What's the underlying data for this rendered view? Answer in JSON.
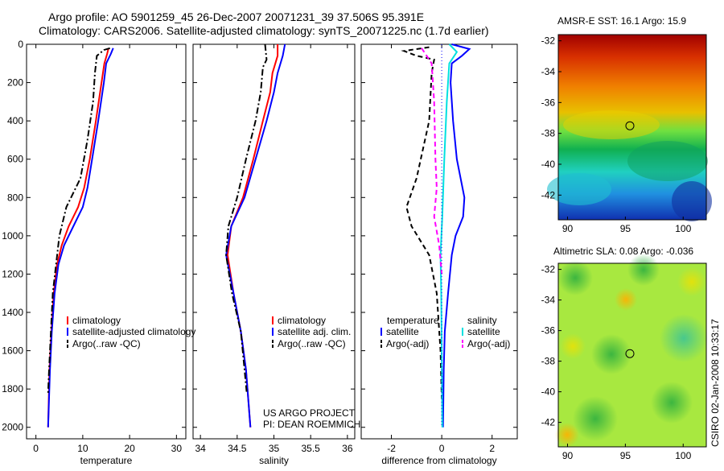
{
  "header": {
    "line1": "Argo profile: AO 5901259_45 26-Dec-2007 20071231_39 37.506S 95.391E",
    "line2": "Climatology: CARS2006. Satellite-adjusted climatology: synTS_20071225.nc (1.7d earlier)"
  },
  "stamp": "CSIRO 02-Jan-2008 10:33:17",
  "project": {
    "line1": "US ARGO PROJECT",
    "line2": "PI: DEAN ROEMMICH"
  },
  "colors": {
    "climatology": "#ff0000",
    "satellite": "#0000ff",
    "argo": "#000000",
    "sat_diff": "#00e0e0",
    "argo_sal_diff": "#ff00ff"
  },
  "chart_data": [
    {
      "type": "line",
      "xlabel": "temperature",
      "ylabel": "",
      "xlim": [
        -2,
        32
      ],
      "ylim": [
        2060,
        0
      ],
      "xticks": [
        0,
        10,
        20,
        30
      ],
      "yticks": [
        0,
        200,
        400,
        600,
        800,
        1000,
        1200,
        1400,
        1600,
        1800,
        2000
      ],
      "legend": [
        "climatology",
        "satellite-adjusted climatology",
        "Argo(..raw -QC)"
      ],
      "series": [
        {
          "name": "climatology",
          "style": "solid",
          "color": "#ff0000",
          "points": [
            [
              15.5,
              20
            ],
            [
              15.2,
              50
            ],
            [
              14.6,
              100
            ],
            [
              14.0,
              200
            ],
            [
              12.8,
              400
            ],
            [
              11.5,
              600
            ],
            [
              10.3,
              750
            ],
            [
              9.0,
              850
            ],
            [
              7.0,
              950
            ],
            [
              5.5,
              1050
            ],
            [
              4.5,
              1150
            ],
            [
              3.8,
              1300
            ],
            [
              3.3,
              1500
            ],
            [
              2.9,
              1700
            ],
            [
              2.6,
              2000
            ]
          ]
        },
        {
          "name": "satellite-adjusted climatology",
          "style": "solid",
          "color": "#0000ff",
          "points": [
            [
              16.5,
              20
            ],
            [
              16.0,
              50
            ],
            [
              15.0,
              100
            ],
            [
              14.5,
              200
            ],
            [
              13.3,
              400
            ],
            [
              12.0,
              600
            ],
            [
              11.0,
              750
            ],
            [
              10.0,
              850
            ],
            [
              8.0,
              950
            ],
            [
              6.0,
              1050
            ],
            [
              4.8,
              1150
            ],
            [
              4.0,
              1300
            ],
            [
              3.4,
              1500
            ],
            [
              3.0,
              1700
            ],
            [
              2.6,
              2000
            ]
          ]
        },
        {
          "name": "Argo(..raw -QC)",
          "style": "dashdot",
          "color": "#000000",
          "points": [
            [
              15.8,
              20
            ],
            [
              14.5,
              30
            ],
            [
              13.0,
              60
            ],
            [
              12.6,
              150
            ],
            [
              12.2,
              300
            ],
            [
              11.0,
              500
            ],
            [
              9.5,
              700
            ],
            [
              6.5,
              850
            ],
            [
              5.0,
              1000
            ],
            [
              4.3,
              1150
            ],
            [
              3.6,
              1300
            ],
            [
              3.2,
              1500
            ],
            [
              2.8,
              1700
            ],
            [
              2.6,
              1820
            ]
          ]
        }
      ]
    },
    {
      "type": "line",
      "xlabel": "salinity",
      "xlim": [
        33.9,
        36.1
      ],
      "ylim": [
        2060,
        0
      ],
      "xticks": [
        34,
        34.5,
        35,
        35.5,
        36
      ],
      "ticklabels": [
        "34",
        "34.5",
        "35",
        "35.5",
        "36"
      ],
      "legend": [
        "climatology",
        "satellite adj. clim.",
        "Argo(..raw -QC)"
      ],
      "series": [
        {
          "name": "climatology",
          "style": "solid",
          "color": "#ff0000",
          "points": [
            [
              35.05,
              0
            ],
            [
              35.05,
              60
            ],
            [
              34.98,
              150
            ],
            [
              34.95,
              250
            ],
            [
              34.85,
              400
            ],
            [
              34.72,
              600
            ],
            [
              34.58,
              800
            ],
            [
              34.42,
              950
            ],
            [
              34.37,
              1100
            ],
            [
              34.45,
              1300
            ],
            [
              34.55,
              1500
            ],
            [
              34.62,
              1700
            ],
            [
              34.68,
              2000
            ]
          ]
        },
        {
          "name": "satellite adj. clim.",
          "style": "solid",
          "color": "#0000ff",
          "points": [
            [
              35.15,
              0
            ],
            [
              35.12,
              60
            ],
            [
              35.05,
              150
            ],
            [
              35.0,
              250
            ],
            [
              34.9,
              400
            ],
            [
              34.75,
              600
            ],
            [
              34.6,
              800
            ],
            [
              34.42,
              950
            ],
            [
              34.35,
              1100
            ],
            [
              34.45,
              1300
            ],
            [
              34.55,
              1500
            ],
            [
              34.62,
              1700
            ],
            [
              34.68,
              2000
            ]
          ]
        },
        {
          "name": "Argo(..raw -QC)",
          "style": "dashdot",
          "color": "#000000",
          "points": [
            [
              34.88,
              0
            ],
            [
              34.9,
              80
            ],
            [
              34.85,
              120
            ],
            [
              34.82,
              250
            ],
            [
              34.75,
              400
            ],
            [
              34.62,
              600
            ],
            [
              34.5,
              800
            ],
            [
              34.38,
              950
            ],
            [
              34.35,
              1100
            ],
            [
              34.43,
              1300
            ],
            [
              34.55,
              1500
            ],
            [
              34.6,
              1700
            ],
            [
              34.63,
              1820
            ]
          ]
        }
      ]
    },
    {
      "type": "line",
      "xlabel": "difference from climatology",
      "xlim": [
        -3.2,
        3.0
      ],
      "ylim": [
        2060,
        0
      ],
      "xticks": [
        -2,
        0,
        2
      ],
      "legend_temperature": {
        "title": "temperature",
        "items": [
          "satellite",
          "Argo(-adj)"
        ]
      },
      "legend_salinity": {
        "title": "salinity",
        "items": [
          "satellite",
          "Argo(-adj)"
        ]
      },
      "series": [
        {
          "name": "temperature satellite",
          "style": "solid",
          "color": "#0000ff",
          "points": [
            [
              0.4,
              0
            ],
            [
              1.1,
              25
            ],
            [
              0.8,
              60
            ],
            [
              0.4,
              100
            ],
            [
              0.35,
              200
            ],
            [
              0.45,
              400
            ],
            [
              0.6,
              600
            ],
            [
              0.9,
              800
            ],
            [
              0.85,
              900
            ],
            [
              0.55,
              1000
            ],
            [
              0.4,
              1100
            ],
            [
              0.25,
              1300
            ],
            [
              0.12,
              1500
            ],
            [
              0.08,
              1700
            ],
            [
              0.05,
              2000
            ]
          ]
        },
        {
          "name": "temperature Argo(-adj)",
          "style": "dashed",
          "color": "#000000",
          "points": [
            [
              -0.5,
              15
            ],
            [
              -1.5,
              35
            ],
            [
              -1.0,
              60
            ],
            [
              -0.3,
              80
            ],
            [
              -0.4,
              150
            ],
            [
              -0.5,
              400
            ],
            [
              -1.0,
              700
            ],
            [
              -1.4,
              850
            ],
            [
              -1.2,
              950
            ],
            [
              -0.5,
              1100
            ],
            [
              -0.2,
              1300
            ],
            [
              -0.05,
              1600
            ],
            [
              0,
              1850
            ]
          ]
        },
        {
          "name": "salinity satellite",
          "style": "solid",
          "color": "#00e0e0",
          "points": [
            [
              0.3,
              0
            ],
            [
              0.6,
              40
            ],
            [
              0.3,
              100
            ],
            [
              0.2,
              300
            ],
            [
              0.1,
              600
            ],
            [
              0.02,
              900
            ],
            [
              -0.05,
              1100
            ],
            [
              -0.02,
              1300
            ],
            [
              0,
              1600
            ],
            [
              0.02,
              2000
            ]
          ]
        },
        {
          "name": "salinity Argo(-adj)",
          "style": "dashed",
          "color": "#ff00ff",
          "points": [
            [
              -0.8,
              20
            ],
            [
              -0.6,
              60
            ],
            [
              -0.4,
              100
            ],
            [
              -0.3,
              300
            ],
            [
              -0.25,
              600
            ],
            [
              -0.2,
              750
            ],
            [
              -0.3,
              900
            ],
            [
              -0.1,
              1050
            ],
            [
              0,
              1200
            ]
          ]
        },
        {
          "name": "zero",
          "style": "dotted",
          "color": "#0000ff",
          "points": [
            [
              0,
              0
            ],
            [
              0,
              2000
            ]
          ]
        }
      ]
    },
    {
      "type": "heatmap",
      "title": "AMSR-E SST: 16.1 Argo: 15.9",
      "xlim": [
        89.2,
        102.0
      ],
      "ylim": [
        -43.6,
        -31.6
      ],
      "xticks": [
        90,
        95,
        100
      ],
      "yticks": [
        -32,
        -34,
        -36,
        -38,
        -40,
        -42
      ],
      "marker": [
        95.391,
        -37.506
      ]
    },
    {
      "type": "heatmap",
      "title": "Altimetric SLA: 0.08 Argo: -0.036",
      "xlim": [
        89.2,
        102.0
      ],
      "ylim": [
        -43.6,
        -31.6
      ],
      "xticks": [
        90,
        95,
        100
      ],
      "yticks": [
        -32,
        -34,
        -36,
        -38,
        -40,
        -42
      ],
      "marker": [
        95.391,
        -37.506
      ]
    }
  ]
}
